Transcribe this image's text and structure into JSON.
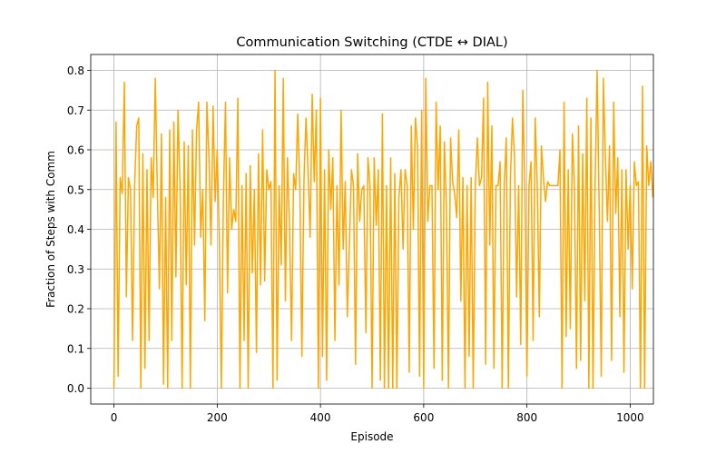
{
  "chart_data": {
    "type": "line",
    "title": "Communication Switching (CTDE ↔ DIAL)",
    "xlabel": "Episode",
    "ylabel": "Fraction of Steps with Comm",
    "xlim": [
      -45,
      1045
    ],
    "ylim": [
      -0.04,
      0.84
    ],
    "xticks": [
      0,
      200,
      400,
      600,
      800,
      1000
    ],
    "yticks": [
      0.0,
      0.1,
      0.2,
      0.3,
      0.4,
      0.5,
      0.6,
      0.7,
      0.8
    ],
    "grid": true,
    "color": "#ffa500",
    "series": [
      {
        "x_start": 0,
        "x_step": 4,
        "values": [
          0.0,
          0.67,
          0.03,
          0.53,
          0.49,
          0.77,
          0.23,
          0.53,
          0.5,
          0.12,
          0.51,
          0.66,
          0.68,
          0.0,
          0.59,
          0.05,
          0.55,
          0.12,
          0.58,
          0.48,
          0.78,
          0.5,
          0.25,
          0.64,
          0.01,
          0.48,
          0.0,
          0.65,
          0.12,
          0.67,
          0.28,
          0.7,
          0.51,
          0.0,
          0.62,
          0.26,
          0.61,
          0.0,
          0.65,
          0.36,
          0.65,
          0.72,
          0.38,
          0.5,
          0.17,
          0.72,
          0.58,
          0.36,
          0.71,
          0.47,
          0.6,
          0.38,
          0.0,
          0.48,
          0.72,
          0.24,
          0.58,
          0.4,
          0.45,
          0.42,
          0.73,
          0.0,
          0.51,
          0.12,
          0.54,
          0.0,
          0.56,
          0.29,
          0.5,
          0.09,
          0.59,
          0.26,
          0.65,
          0.27,
          0.55,
          0.5,
          0.52,
          0.0,
          0.8,
          0.02,
          0.51,
          0.31,
          0.78,
          0.22,
          0.58,
          0.41,
          0.12,
          0.54,
          0.5,
          0.69,
          0.51,
          0.08,
          0.52,
          0.68,
          0.55,
          0.38,
          0.74,
          0.52,
          0.7,
          0.0,
          0.73,
          0.08,
          0.55,
          0.02,
          0.6,
          0.45,
          0.58,
          0.12,
          0.51,
          0.26,
          0.7,
          0.35,
          0.52,
          0.18,
          0.36,
          0.55,
          0.51,
          0.06,
          0.59,
          0.42,
          0.5,
          0.51,
          0.14,
          0.58,
          0.51,
          0.0,
          0.58,
          0.41,
          0.55,
          0.02,
          0.69,
          0.0,
          0.51,
          0.0,
          0.58,
          0.0,
          0.54,
          0.0,
          0.48,
          0.55,
          0.35,
          0.55,
          0.51,
          0.04,
          0.66,
          0.4,
          0.68,
          0.61,
          0.03,
          0.7,
          0.0,
          0.78,
          0.42,
          0.51,
          0.51,
          0.05,
          0.72,
          0.5,
          0.66,
          0.02,
          0.62,
          0.46,
          0.0,
          0.63,
          0.52,
          0.49,
          0.43,
          0.65,
          0.22,
          0.53,
          0.0,
          0.51,
          0.08,
          0.53,
          0.0,
          0.51,
          0.63,
          0.51,
          0.53,
          0.73,
          0.06,
          0.77,
          0.36,
          0.66,
          0.05,
          0.51,
          0.51,
          0.57,
          0.0,
          0.51,
          0.63,
          0.0,
          0.53,
          0.68,
          0.58,
          0.23,
          0.51,
          0.11,
          0.75,
          0.51,
          0.03,
          0.51,
          0.57,
          0.12,
          0.68,
          0.51,
          0.18,
          0.61,
          0.53,
          0.47,
          0.52,
          0.51,
          0.51,
          0.51,
          0.51,
          0.51,
          0.6,
          0.0,
          0.72,
          0.13,
          0.55,
          0.15,
          0.64,
          0.51,
          0.05,
          0.66,
          0.07,
          0.59,
          0.22,
          0.73,
          0.0,
          0.68,
          0.0,
          0.51,
          0.8,
          0.45,
          0.03,
          0.78,
          0.58,
          0.42,
          0.61,
          0.07,
          0.72,
          0.44,
          0.58,
          0.18,
          0.55,
          0.04,
          0.55,
          0.35,
          0.51,
          0.25,
          0.57,
          0.51,
          0.52,
          0.0,
          0.76,
          0.0,
          0.61,
          0.51,
          0.57,
          0.48
        ]
      }
    ]
  }
}
